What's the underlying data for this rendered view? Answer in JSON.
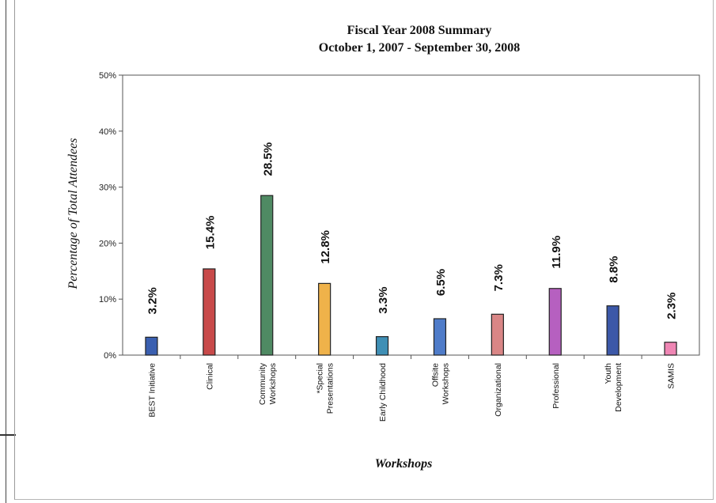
{
  "chart_data": {
    "type": "bar",
    "title": "Fiscal Year 2008 Summary",
    "subtitle": "October 1, 2007 - September 30, 2008",
    "xlabel": "Workshops",
    "ylabel": "Percentage of Total Attendees",
    "ylim": [
      0,
      50
    ],
    "yticks": [
      "0%",
      "10%",
      "20%",
      "30%",
      "40%",
      "50%"
    ],
    "ytick_values": [
      0,
      10,
      20,
      30,
      40,
      50
    ],
    "grid": false,
    "categories": [
      [
        "BEST Initiative"
      ],
      [
        "Clinical"
      ],
      [
        "Community",
        "Workshops"
      ],
      [
        "*Special",
        "Presentations"
      ],
      [
        "Early Childhood"
      ],
      [
        "Offsite",
        "Workshops"
      ],
      [
        "Organizational"
      ],
      [
        "Professional"
      ],
      [
        "Youth",
        "Development"
      ],
      [
        "SAMIS"
      ]
    ],
    "values": [
      3.2,
      15.4,
      28.5,
      12.8,
      3.3,
      6.5,
      7.3,
      11.9,
      8.8,
      2.3
    ],
    "data_labels": [
      "3.2%",
      "15.4%",
      "28.5%",
      "12.8%",
      "3.3%",
      "6.5%",
      "7.3%",
      "11.9%",
      "8.8%",
      "2.3%"
    ],
    "colors": [
      "#3a5fb0",
      "#c84a4a",
      "#4f8a63",
      "#efb24a",
      "#3f8fb5",
      "#4f7cc9",
      "#d98686",
      "#b660c0",
      "#3c58a8",
      "#ef86b4"
    ]
  }
}
